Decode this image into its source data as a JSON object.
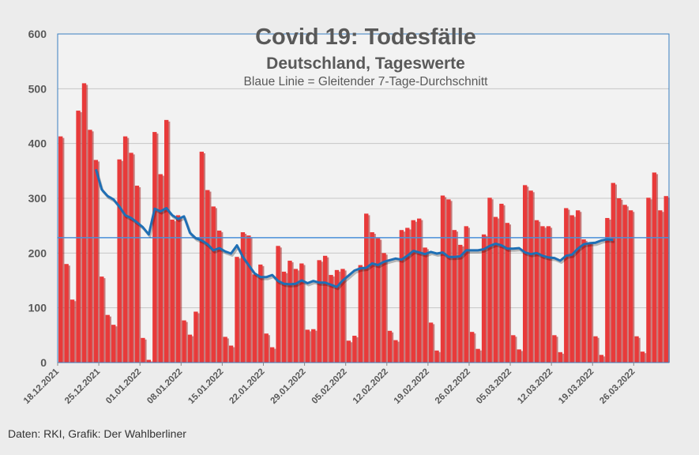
{
  "title": "Covid 19: Todesfälle",
  "subtitle": "Deutschland, Tageswerte",
  "note": "Blaue Linie = Gleitender 7-Tage-Durchschnitt",
  "source": "Daten: RKI, Grafik: Der Wahlberliner",
  "colors": {
    "bar": "#e83a3a",
    "bar_shadow": "#a31f1f",
    "avg_line": "#1f6fb5",
    "ref_line": "#4a90d9",
    "grid": "#c6c6c6",
    "axis_text": "#595959",
    "background": "#ececec"
  },
  "chart_data": {
    "type": "bar",
    "title": "Covid 19: Todesfälle",
    "subtitle": "Deutschland, Tageswerte",
    "xlabel": "",
    "ylabel": "",
    "ylim": [
      0,
      600
    ],
    "yticks": [
      0,
      100,
      200,
      300,
      400,
      500,
      600
    ],
    "grid": true,
    "start_date": "18.12.2021",
    "x_tick_labels": [
      "18.12.2021",
      "25.12.2021",
      "01.01.2022",
      "08.01.2022",
      "15.01.2022",
      "22.01.2022",
      "29.01.2022",
      "05.02.2022",
      "12.02.2022",
      "19.02.2022",
      "26.02.2022",
      "05.03.2022",
      "12.03.2022",
      "19.03.2022",
      "26.03.2022"
    ],
    "series": [
      {
        "name": "Tageswerte",
        "type": "bar",
        "values": [
          413,
          180,
          115,
          460,
          510,
          425,
          370,
          157,
          87,
          69,
          371,
          413,
          383,
          323,
          45,
          5,
          421,
          344,
          443,
          261,
          269,
          77,
          51,
          93,
          385,
          315,
          285,
          241,
          47,
          31,
          193,
          238,
          232,
          161,
          179,
          53,
          28,
          213,
          166,
          186,
          171,
          181,
          60,
          61,
          187,
          195,
          160,
          169,
          171,
          40,
          49,
          178,
          272,
          238,
          227,
          200,
          58,
          41,
          242,
          246,
          260,
          263,
          210,
          73,
          22,
          305,
          298,
          242,
          215,
          249,
          56,
          25,
          234,
          301,
          266,
          290,
          255,
          50,
          24,
          324,
          314,
          260,
          249,
          249,
          50,
          19,
          282,
          269,
          278,
          225,
          219,
          48,
          14,
          264,
          328,
          300,
          288,
          278,
          48,
          20,
          301,
          347,
          278,
          304
        ]
      },
      {
        "name": "Gleitender 7-Tage-Durchschnitt",
        "type": "line",
        "start_index": 6,
        "values": [
          353,
          316,
          304,
          298,
          285,
          269,
          264,
          256,
          247,
          234,
          281,
          276,
          282,
          269,
          262,
          267,
          237,
          227,
          223,
          216,
          205,
          209,
          203,
          199,
          214,
          193,
          178,
          163,
          156,
          156,
          160,
          149,
          144,
          143,
          144,
          150,
          145,
          149,
          146,
          146,
          142,
          138,
          150,
          159,
          168,
          172,
          173,
          181,
          178,
          184,
          187,
          190,
          188,
          195,
          204,
          201,
          198,
          202,
          199,
          201,
          193,
          193,
          194,
          205,
          205,
          205,
          207,
          213,
          217,
          214,
          208,
          208,
          209,
          201,
          198,
          200,
          195,
          192,
          191,
          186,
          195,
          197,
          208,
          216,
          218,
          219,
          223,
          225,
          224
        ]
      },
      {
        "name": "Referenzlinie",
        "type": "hline",
        "value": 228
      }
    ]
  }
}
